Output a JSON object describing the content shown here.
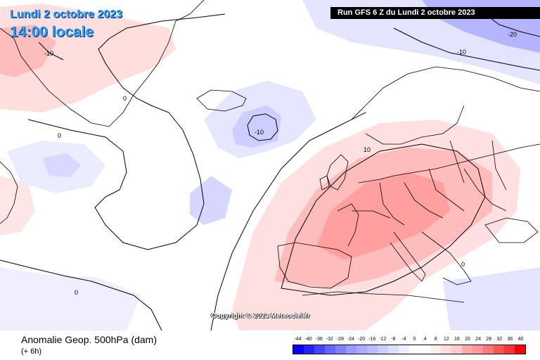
{
  "header": {
    "date_line": "Lundi 2 octobre 2023",
    "time_line": "14:00 locale",
    "run_info": "Run GFS 6 Z du Lundi 2 octobre 2023"
  },
  "credit": "Copyright © 2023 Meteociel.fr",
  "parameter": {
    "title": "Anomalie Geop. 500hPa (dam)",
    "step": "(+ 6h)"
  },
  "contour_labels": [
    "-20",
    "-10",
    "-10",
    "0",
    "0",
    "-10",
    "10",
    "0",
    "0"
  ],
  "legend": {
    "ticks": [
      "-44",
      "-40",
      "-36",
      "-32",
      "-28",
      "-24",
      "-20",
      "-16",
      "-12",
      "-8",
      "-4",
      "0",
      "4",
      "8",
      "12",
      "16",
      "20",
      "24",
      "28",
      "32",
      "36",
      "40"
    ],
    "colors": [
      "#0000ff",
      "#2222ff",
      "#4444ff",
      "#6666ff",
      "#8080ff",
      "#9999ff",
      "#aaaaff",
      "#bbbbff",
      "#ccccff",
      "#ddddff",
      "#eeeeff",
      "#ffffff",
      "#ffffff",
      "#ffeeee",
      "#ffdddd",
      "#ffcccc",
      "#ffaaaa",
      "#ff9999",
      "#ff7777",
      "#ff5555",
      "#ff3333",
      "#ff0000"
    ]
  }
}
